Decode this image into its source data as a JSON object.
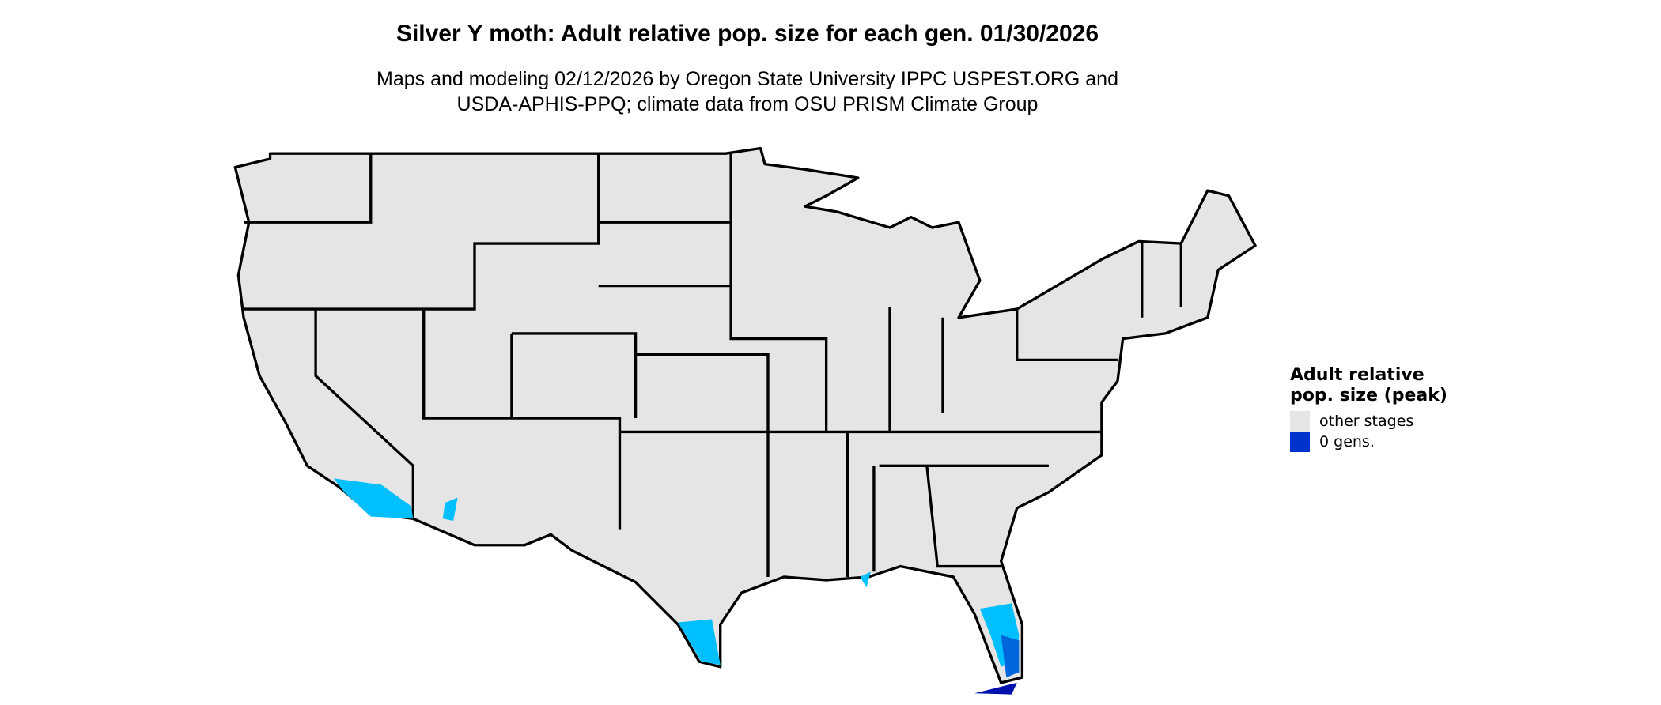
{
  "title": "Silver Y moth: Adult relative pop. size for each gen. 01/30/2026",
  "subtitle_line1": "Maps and modeling 02/12/2026 by Oregon State University IPPC USPEST.ORG and",
  "subtitle_line2": "USDA-APHIS-PPQ; climate data from OSU PRISM Climate Group",
  "legend": {
    "title": "Adult relative pop. size (peak)",
    "items": [
      {
        "label": "other stages",
        "color": "#e5e5e5"
      },
      {
        "label": "0 gens.",
        "color": "#0033cc"
      }
    ]
  },
  "colors": {
    "land": "#e5e5e5",
    "border": "#000000",
    "light_blue": "#00bfff",
    "mid_blue": "#0066dd",
    "dark_blue": "#0010aa"
  }
}
